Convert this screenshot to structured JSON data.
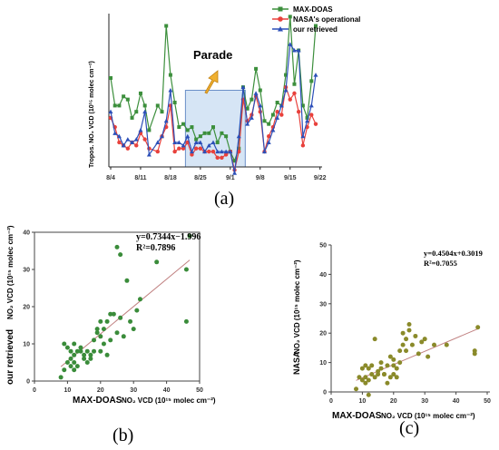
{
  "chart_data": [
    {
      "type": "line",
      "panel_label": "(a)",
      "ylabel": "Tropos. NO₂ VCD (10¹⁵ molec cm⁻²)",
      "x_ticks": [
        "8/4",
        "8/11",
        "8/18",
        "8/25",
        "9/1",
        "9/8",
        "9/15",
        "9/22"
      ],
      "ylim": [
        0,
        50
      ],
      "highlight_x_range": [
        17.5,
        31.5
      ],
      "annotation": "Parade",
      "legend_position": "top-right",
      "series": [
        {
          "name": "MAX-DOAS",
          "color": "#3c8f3c",
          "marker": "square",
          "x": [
            0,
            1,
            2,
            3,
            4,
            5,
            6,
            7,
            8,
            9,
            11,
            12,
            13,
            14,
            15,
            16,
            17,
            18,
            19,
            20,
            21,
            22,
            23,
            24,
            25,
            26,
            27,
            28,
            29,
            30,
            31,
            32,
            33,
            34,
            35,
            36,
            37,
            38,
            39,
            40,
            41,
            42,
            43,
            44,
            45,
            46,
            47,
            48
          ],
          "values": [
            29,
            20,
            20,
            23,
            22,
            16,
            18,
            24,
            20,
            12,
            20,
            18,
            46,
            30,
            21,
            13,
            14,
            12,
            13,
            9,
            10,
            11,
            11,
            13,
            8,
            11,
            10,
            5,
            2,
            6,
            26,
            19,
            22,
            32,
            25,
            15,
            14,
            17,
            21,
            20,
            30,
            49,
            27,
            38,
            20,
            16,
            28,
            46
          ]
        },
        {
          "name": "NASA's operational",
          "color": "#e8413c",
          "marker": "circle",
          "x": [
            0,
            1,
            2,
            3,
            4,
            5,
            6,
            7,
            8,
            9,
            11,
            12,
            13,
            14,
            15,
            16,
            17,
            18,
            19,
            20,
            21,
            22,
            23,
            24,
            25,
            26,
            27,
            28,
            29,
            30,
            31,
            32,
            33,
            34,
            35,
            36,
            37,
            38,
            39,
            40,
            41,
            42,
            43,
            44,
            45,
            46,
            47,
            48
          ],
          "values": [
            16,
            13,
            8,
            7,
            6,
            8,
            7,
            11,
            9,
            6,
            5,
            10,
            13,
            20,
            5,
            6,
            6,
            8,
            4,
            6,
            6,
            5,
            5,
            5,
            3,
            3,
            4,
            5,
            -1,
            5,
            22,
            15,
            17,
            23,
            18,
            5,
            10,
            13,
            18,
            17,
            26,
            22,
            24,
            18,
            7,
            13,
            17,
            14
          ],
          "__comment": ""
        },
        {
          "name": "our retrieved",
          "color": "#2c4fb8",
          "marker": "triangle",
          "x": [
            0,
            1,
            2,
            3,
            4,
            5,
            6,
            7,
            8,
            9,
            11,
            12,
            13,
            14,
            15,
            16,
            17,
            18,
            19,
            20,
            21,
            22,
            23,
            24,
            25,
            26,
            27,
            28,
            29,
            30,
            31,
            32,
            33,
            34,
            35,
            36,
            37,
            38,
            39,
            40,
            41,
            42,
            43,
            44,
            45,
            46,
            47,
            48
          ],
          "values": [
            18,
            11,
            10,
            7,
            9,
            8,
            9,
            12,
            18,
            4,
            8,
            10,
            15,
            25,
            8,
            8,
            7,
            10,
            5,
            8,
            8,
            5,
            7,
            8,
            5,
            5,
            5,
            5,
            -2,
            10,
            26,
            14,
            16,
            24,
            20,
            5,
            8,
            12,
            16,
            20,
            25,
            40,
            38,
            38,
            10,
            15,
            20,
            30
          ]
        }
      ]
    },
    {
      "type": "scatter",
      "panel_label": "(b)",
      "xlabel_main": "MAX-DOAS",
      "xlabel_unit": "NO₂ VCD (10¹⁵ molec cm⁻²)",
      "ylabel_main": "our retrieved",
      "ylabel_unit": "NO₂ VCD (10¹⁵ molec cm⁻²)",
      "xlim": [
        0,
        50
      ],
      "ylim": [
        0,
        40
      ],
      "x_ticks": [
        0,
        10,
        20,
        30,
        40,
        50
      ],
      "y_ticks": [
        0,
        10,
        20,
        30,
        40
      ],
      "equation": "y=0.7344x−1.996",
      "r_squared": "R²=0.7896",
      "fit": {
        "slope": 0.7344,
        "intercept": -1.996,
        "x_range": [
          8,
          47
        ]
      },
      "color": "#3a8c3a",
      "points": [
        [
          8,
          1
        ],
        [
          9,
          3
        ],
        [
          9,
          10
        ],
        [
          10,
          5
        ],
        [
          10,
          9
        ],
        [
          11,
          4
        ],
        [
          11,
          6
        ],
        [
          11,
          8
        ],
        [
          12,
          3
        ],
        [
          12,
          5
        ],
        [
          12,
          7
        ],
        [
          12,
          10
        ],
        [
          13,
          4
        ],
        [
          13,
          8
        ],
        [
          14,
          9
        ],
        [
          14,
          8
        ],
        [
          15,
          6
        ],
        [
          15,
          7
        ],
        [
          16,
          5
        ],
        [
          16,
          8
        ],
        [
          17,
          6
        ],
        [
          17,
          7
        ],
        [
          18,
          8
        ],
        [
          18,
          11
        ],
        [
          19,
          13
        ],
        [
          19,
          14
        ],
        [
          20,
          8
        ],
        [
          20,
          12
        ],
        [
          20,
          16
        ],
        [
          21,
          10
        ],
        [
          21,
          14
        ],
        [
          22,
          7
        ],
        [
          22,
          16
        ],
        [
          23,
          18
        ],
        [
          23,
          11
        ],
        [
          24,
          18
        ],
        [
          25,
          13
        ],
        [
          25,
          36
        ],
        [
          26,
          34
        ],
        [
          26,
          17
        ],
        [
          27,
          12
        ],
        [
          28,
          27
        ],
        [
          29,
          16
        ],
        [
          30,
          14
        ],
        [
          31,
          19
        ],
        [
          32,
          22
        ],
        [
          37,
          32
        ],
        [
          46,
          16
        ],
        [
          46,
          30
        ],
        [
          47,
          39
        ]
      ]
    },
    {
      "type": "scatter",
      "panel_label": "(c)",
      "xlabel_main": "MAX-DOAS",
      "xlabel_unit": "NO₂ VCD (10¹⁵ molec cm⁻²)",
      "ylabel_main": "NASA",
      "ylabel_unit": "NO₂ VCD (10¹⁵ molec cm⁻²)",
      "xlim": [
        0,
        50
      ],
      "ylim": [
        0,
        50
      ],
      "x_ticks": [
        0,
        10,
        20,
        30,
        40,
        50
      ],
      "y_ticks": [
        0,
        10,
        20,
        30,
        40,
        50
      ],
      "equation": "y=0.4504x+0.3019",
      "r_squared": "R²=0.7055",
      "fit": {
        "slope": 0.4504,
        "intercept": 0.3019,
        "x_range": [
          8,
          47
        ]
      },
      "color": "#8a8a2a",
      "points": [
        [
          8,
          1
        ],
        [
          9,
          5
        ],
        [
          10,
          4
        ],
        [
          10,
          8
        ],
        [
          11,
          3
        ],
        [
          11,
          5
        ],
        [
          11,
          9
        ],
        [
          12,
          -1
        ],
        [
          12,
          4
        ],
        [
          12,
          8
        ],
        [
          13,
          6
        ],
        [
          13,
          9
        ],
        [
          14,
          18
        ],
        [
          14,
          5
        ],
        [
          15,
          7
        ],
        [
          15,
          6
        ],
        [
          16,
          10
        ],
        [
          16,
          8
        ],
        [
          17,
          6
        ],
        [
          17,
          6
        ],
        [
          18,
          9
        ],
        [
          18,
          3
        ],
        [
          19,
          12
        ],
        [
          19,
          5
        ],
        [
          20,
          11
        ],
        [
          20,
          9
        ],
        [
          20,
          6
        ],
        [
          21,
          8
        ],
        [
          21,
          5
        ],
        [
          22,
          14
        ],
        [
          22,
          10
        ],
        [
          23,
          16
        ],
        [
          23,
          20
        ],
        [
          24,
          18
        ],
        [
          24,
          14
        ],
        [
          25,
          21
        ],
        [
          25,
          23
        ],
        [
          26,
          16
        ],
        [
          27,
          19
        ],
        [
          28,
          13
        ],
        [
          29,
          17
        ],
        [
          30,
          18
        ],
        [
          31,
          12
        ],
        [
          33,
          16
        ],
        [
          37,
          16
        ],
        [
          46,
          14
        ],
        [
          46,
          13
        ],
        [
          47,
          22
        ]
      ]
    }
  ]
}
